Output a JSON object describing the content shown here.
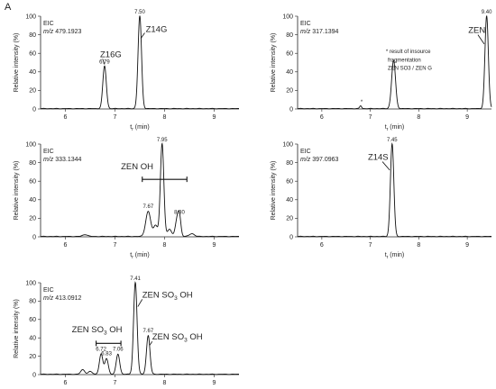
{
  "panel_label": "A",
  "chart_data": [
    {
      "id": "p1",
      "type": "line",
      "eic_label": "EIC",
      "mz_prefix": "m/z",
      "mz_value": "479.1923",
      "xlabel_main": "t",
      "xlabel_sub": "r",
      "xlabel_unit": "(min)",
      "ylabel": "Relative intensity (%)",
      "xlim": [
        5.5,
        9.5
      ],
      "ylim": [
        0,
        100
      ],
      "xticks": [
        6,
        7,
        8,
        9
      ],
      "yticks": [
        0,
        20,
        40,
        60,
        80,
        100
      ],
      "peaks": [
        {
          "rt": 6.79,
          "height": 46,
          "width": 0.035
        },
        {
          "rt": 7.5,
          "height": 100,
          "width": 0.035
        }
      ],
      "labels": [
        {
          "text": "6.79",
          "x": 6.79,
          "y": 48
        },
        {
          "text": "7.50",
          "x": 7.5,
          "y": 102
        }
      ],
      "annotations": [
        {
          "text": "Z16G",
          "x": 6.7,
          "y": 56,
          "arrow": [
            6.75,
            54,
            6.79,
            48
          ]
        },
        {
          "text": "Z14G",
          "x": 7.62,
          "y": 83,
          "arrow": [
            7.6,
            82,
            7.52,
            76
          ]
        }
      ]
    },
    {
      "id": "p2",
      "type": "line",
      "eic_label": "EIC",
      "mz_prefix": "m/z",
      "mz_value": "317.1394",
      "xlabel_main": "t",
      "xlabel_sub": "r",
      "xlabel_unit": "(min)",
      "ylabel": "Relative intensity (%)",
      "xlim": [
        5.5,
        9.5
      ],
      "ylim": [
        0,
        100
      ],
      "xticks": [
        6,
        7,
        8,
        9
      ],
      "yticks": [
        0,
        20,
        40,
        60,
        80,
        100
      ],
      "peaks": [
        {
          "rt": 6.8,
          "height": 3,
          "width": 0.02
        },
        {
          "rt": 7.48,
          "height": 52,
          "width": 0.04
        },
        {
          "rt": 9.4,
          "height": 100,
          "width": 0.035
        }
      ],
      "labels": [
        {
          "text": "9.40",
          "x": 9.4,
          "y": 102
        }
      ],
      "annotations": [
        {
          "text": "ZEN",
          "x": 9.02,
          "y": 82,
          "arrow": [
            9.22,
            80,
            9.35,
            70
          ]
        }
      ],
      "notes": [
        {
          "text": "*",
          "x": 6.8,
          "y": 6
        },
        {
          "text": "* result of insource",
          "x": 7.32,
          "y": 60
        },
        {
          "text": "fragmentation",
          "x": 7.36,
          "y": 51
        },
        {
          "text": "ZEN SO3 / ZEN G",
          "x": 7.36,
          "y": 42
        }
      ]
    },
    {
      "id": "p3",
      "type": "line",
      "eic_label": "EIC",
      "mz_prefix": "m/z",
      "mz_value": "333.1344",
      "xlabel_main": "t",
      "xlabel_sub": "r",
      "xlabel_unit": "(min)",
      "ylabel": "Relative intensity (%)",
      "xlim": [
        5.5,
        9.5
      ],
      "ylim": [
        0,
        100
      ],
      "xticks": [
        6,
        7,
        8,
        9
      ],
      "yticks": [
        0,
        20,
        40,
        60,
        80,
        100
      ],
      "peaks": [
        {
          "rt": 6.4,
          "height": 2,
          "width": 0.05
        },
        {
          "rt": 7.67,
          "height": 27,
          "width": 0.05
        },
        {
          "rt": 7.82,
          "height": 12,
          "width": 0.04
        },
        {
          "rt": 7.95,
          "height": 100,
          "width": 0.035
        },
        {
          "rt": 8.1,
          "height": 8,
          "width": 0.04
        },
        {
          "rt": 8.25,
          "height": 17,
          "width": 0.035
        },
        {
          "rt": 8.3,
          "height": 20,
          "width": 0.03
        },
        {
          "rt": 8.55,
          "height": 3,
          "width": 0.05
        }
      ],
      "labels": [
        {
          "text": "7.67",
          "x": 7.67,
          "y": 30
        },
        {
          "text": "7.95",
          "x": 7.95,
          "y": 102
        },
        {
          "text": "8.30",
          "x": 8.3,
          "y": 24
        }
      ],
      "annotations": [
        {
          "text": "ZEN OH",
          "x": 7.12,
          "y": 73
        }
      ],
      "bracket": {
        "x1": 7.55,
        "x2": 8.45,
        "y": 62
      }
    },
    {
      "id": "p4",
      "type": "line",
      "eic_label": "EIC",
      "mz_prefix": "m/z",
      "mz_value": "397.0963",
      "xlabel_main": "t",
      "xlabel_sub": "r",
      "xlabel_unit": "(min)",
      "ylabel": "Relative intensity (%)",
      "xlim": [
        5.5,
        9.5
      ],
      "ylim": [
        0,
        100
      ],
      "xticks": [
        6,
        7,
        8,
        9
      ],
      "yticks": [
        0,
        20,
        40,
        60,
        80,
        100
      ],
      "peaks": [
        {
          "rt": 7.45,
          "height": 100,
          "width": 0.035
        }
      ],
      "labels": [
        {
          "text": "7.45",
          "x": 7.45,
          "y": 102
        }
      ],
      "annotations": [
        {
          "text": "Z14S",
          "x": 6.95,
          "y": 83,
          "arrow": [
            7.25,
            81,
            7.4,
            72
          ]
        }
      ]
    },
    {
      "id": "p5",
      "type": "line",
      "eic_label": "EIC",
      "mz_prefix": "m/z",
      "mz_value": "413.0912",
      "xlabel_main": "t",
      "xlabel_sub": "r",
      "xlabel_unit": "(min)",
      "ylabel": "Relative intensity (%)",
      "xlim": [
        5.5,
        9.5
      ],
      "ylim": [
        0,
        100
      ],
      "xticks": [
        6,
        7,
        8,
        9
      ],
      "yticks": [
        0,
        20,
        40,
        60,
        80,
        100
      ],
      "peaks": [
        {
          "rt": 6.35,
          "height": 5,
          "width": 0.04
        },
        {
          "rt": 6.5,
          "height": 3,
          "width": 0.04
        },
        {
          "rt": 6.72,
          "height": 22,
          "width": 0.035
        },
        {
          "rt": 6.83,
          "height": 17,
          "width": 0.035
        },
        {
          "rt": 7.06,
          "height": 22,
          "width": 0.035
        },
        {
          "rt": 7.41,
          "height": 100,
          "width": 0.035
        },
        {
          "rt": 7.67,
          "height": 42,
          "width": 0.035
        }
      ],
      "labels": [
        {
          "text": "6.72",
          "x": 6.72,
          "y": 25
        },
        {
          "text": "6.83",
          "x": 6.83,
          "y": 20
        },
        {
          "text": "7.06",
          "x": 7.06,
          "y": 25
        },
        {
          "text": "7.41",
          "x": 7.41,
          "y": 102
        },
        {
          "text": "7.67",
          "x": 7.67,
          "y": 45
        }
      ],
      "annotations": [
        {
          "text": "ZEN SO",
          "sub": "3",
          "tail": " OH",
          "x": 7.55,
          "y": 84,
          "arrow": [
            7.55,
            82,
            7.46,
            74
          ]
        },
        {
          "text": "ZEN SO",
          "sub": "3",
          "tail": " OH",
          "x": 6.13,
          "y": 46
        },
        {
          "text": "ZEN SO",
          "sub": "3",
          "tail": " OH",
          "x": 7.75,
          "y": 38,
          "arrow": [
            7.75,
            36,
            7.7,
            32
          ]
        }
      ],
      "bracket": {
        "x1": 6.62,
        "x2": 7.12,
        "y": 34
      }
    }
  ]
}
